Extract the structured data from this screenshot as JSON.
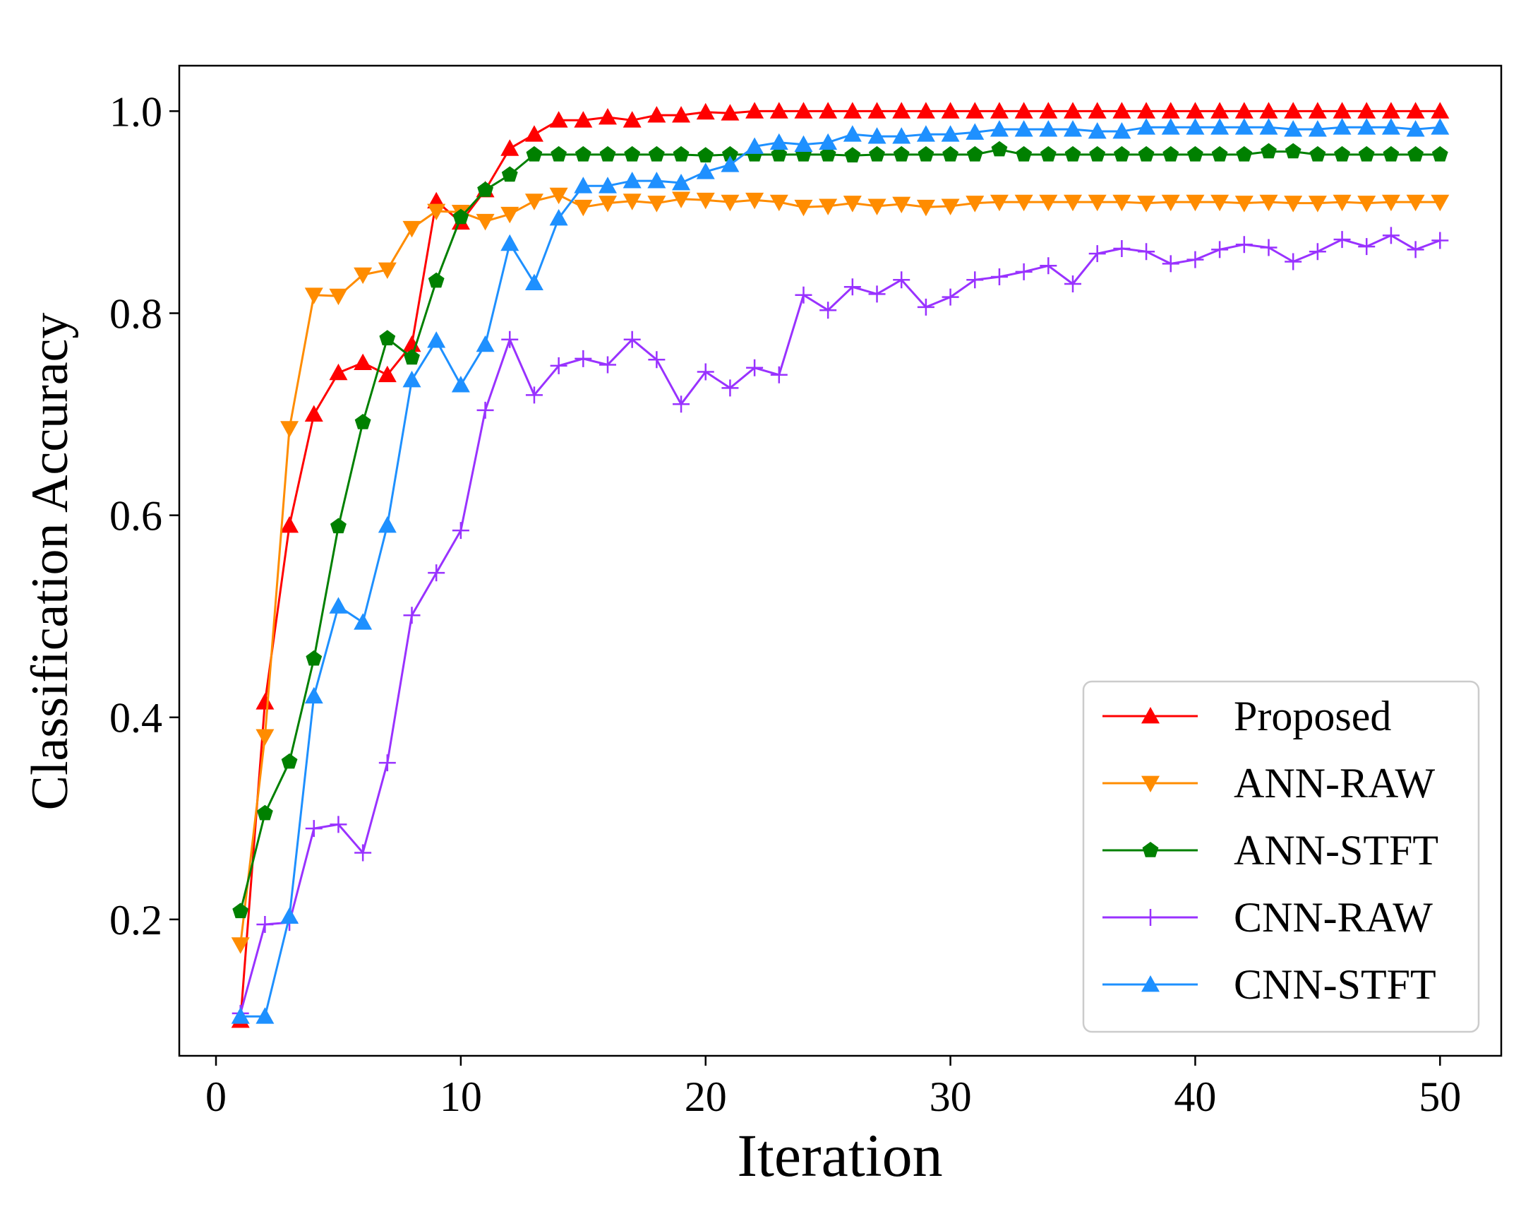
{
  "chart_data": {
    "type": "line",
    "title": "",
    "xlabel": "Iteration",
    "ylabel": "Classification Accuracy",
    "xlim": [
      -1.5,
      52.5
    ],
    "ylim": [
      0.065,
      1.045
    ],
    "xticks": [
      0,
      10,
      20,
      30,
      40,
      50
    ],
    "yticks": [
      0.2,
      0.4,
      0.6,
      0.8,
      1.0
    ],
    "xtick_labels": [
      "0",
      "10",
      "20",
      "30",
      "40",
      "50"
    ],
    "ytick_labels": [
      "0.2",
      "0.4",
      "0.6",
      "0.8",
      "1.0"
    ],
    "grid": false,
    "legend_position": "bottom-right",
    "x": [
      1,
      2,
      3,
      4,
      5,
      6,
      7,
      8,
      9,
      10,
      11,
      12,
      13,
      14,
      15,
      16,
      17,
      18,
      19,
      20,
      21,
      22,
      23,
      24,
      25,
      26,
      27,
      28,
      29,
      30,
      31,
      32,
      33,
      34,
      35,
      36,
      37,
      38,
      39,
      40,
      41,
      42,
      43,
      44,
      45,
      46,
      47,
      48,
      49,
      50
    ],
    "series": [
      {
        "name": "Proposed",
        "color": "#ff0000",
        "marker": "triangle-up",
        "values": [
          0.1,
          0.415,
          0.59,
          0.7,
          0.741,
          0.751,
          0.739,
          0.769,
          0.911,
          0.89,
          0.922,
          0.963,
          0.977,
          0.991,
          0.991,
          0.994,
          0.991,
          0.996,
          0.996,
          0.999,
          0.998,
          1.0,
          1.0,
          1.0,
          1.0,
          1.0,
          1.0,
          1.0,
          1.0,
          1.0,
          1.0,
          1.0,
          1.0,
          1.0,
          1.0,
          1.0,
          1.0,
          1.0,
          1.0,
          1.0,
          1.0,
          1.0,
          1.0,
          1.0,
          1.0,
          1.0,
          1.0,
          1.0,
          1.0,
          1.0
        ]
      },
      {
        "name": "ANN-RAW",
        "color": "#ff8c00",
        "marker": "triangle-down",
        "values": [
          0.175,
          0.381,
          0.686,
          0.818,
          0.817,
          0.838,
          0.843,
          0.884,
          0.901,
          0.9,
          0.891,
          0.898,
          0.911,
          0.917,
          0.905,
          0.909,
          0.911,
          0.909,
          0.913,
          0.912,
          0.91,
          0.912,
          0.91,
          0.905,
          0.906,
          0.909,
          0.906,
          0.908,
          0.905,
          0.906,
          0.909,
          0.91,
          0.91,
          0.91,
          0.91,
          0.91,
          0.91,
          0.909,
          0.91,
          0.91,
          0.91,
          0.909,
          0.91,
          0.909,
          0.909,
          0.91,
          0.909,
          0.91,
          0.91,
          0.91
        ]
      },
      {
        "name": "ANN-STFT",
        "color": "#008000",
        "marker": "pentagon",
        "values": [
          0.208,
          0.305,
          0.356,
          0.458,
          0.589,
          0.692,
          0.775,
          0.756,
          0.832,
          0.895,
          0.922,
          0.937,
          0.957,
          0.957,
          0.957,
          0.957,
          0.957,
          0.957,
          0.957,
          0.956,
          0.957,
          0.957,
          0.957,
          0.957,
          0.957,
          0.956,
          0.957,
          0.957,
          0.957,
          0.957,
          0.957,
          0.962,
          0.957,
          0.957,
          0.957,
          0.957,
          0.957,
          0.957,
          0.957,
          0.957,
          0.957,
          0.957,
          0.96,
          0.96,
          0.957,
          0.957,
          0.957,
          0.957,
          0.957,
          0.957
        ]
      },
      {
        "name": "CNN-RAW",
        "color": "#9932ff",
        "marker": "plus",
        "values": [
          0.107,
          0.195,
          0.197,
          0.29,
          0.294,
          0.266,
          0.355,
          0.501,
          0.543,
          0.585,
          0.704,
          0.774,
          0.719,
          0.748,
          0.755,
          0.749,
          0.774,
          0.754,
          0.71,
          0.742,
          0.726,
          0.746,
          0.739,
          0.818,
          0.803,
          0.826,
          0.819,
          0.833,
          0.806,
          0.816,
          0.833,
          0.836,
          0.841,
          0.847,
          0.829,
          0.859,
          0.864,
          0.861,
          0.849,
          0.853,
          0.863,
          0.868,
          0.865,
          0.851,
          0.861,
          0.873,
          0.866,
          0.877,
          0.863,
          0.872
        ]
      },
      {
        "name": "CNN-STFT",
        "color": "#1e90ff",
        "marker": "triangle-up",
        "values": [
          0.104,
          0.104,
          0.203,
          0.421,
          0.51,
          0.494,
          0.59,
          0.734,
          0.773,
          0.729,
          0.769,
          0.869,
          0.83,
          0.894,
          0.926,
          0.926,
          0.931,
          0.931,
          0.929,
          0.94,
          0.947,
          0.965,
          0.969,
          0.967,
          0.969,
          0.977,
          0.975,
          0.975,
          0.977,
          0.977,
          0.979,
          0.982,
          0.982,
          0.982,
          0.982,
          0.98,
          0.98,
          0.984,
          0.984,
          0.984,
          0.984,
          0.984,
          0.984,
          0.982,
          0.982,
          0.984,
          0.984,
          0.984,
          0.982,
          0.984
        ]
      }
    ]
  }
}
